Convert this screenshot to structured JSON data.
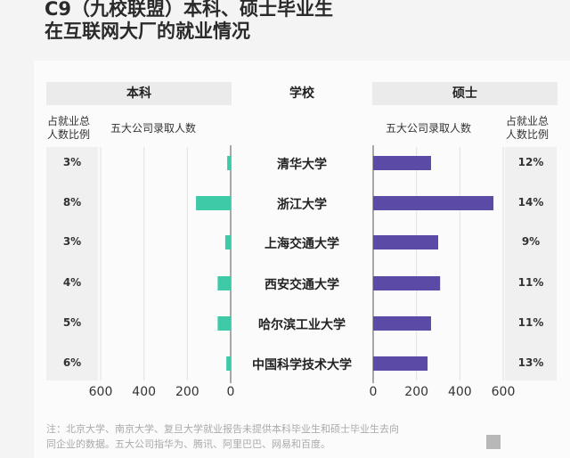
{
  "title_line1": "C9（九校联盟）本科、硕士毕业生",
  "title_line2": "在互联网大厂的就业情况",
  "chart_data": {
    "type": "bar",
    "layout": "back-to-back horizontal bars",
    "headers": {
      "left": "本科",
      "center": "学校",
      "right": "硕士"
    },
    "subheaders": {
      "left_pct": "占就业总人数比例",
      "left_count": "五大公司录取人数",
      "right_count": "五大公司录取人数",
      "right_pct": "占就业总人数比例"
    },
    "categories": [
      "清华大学",
      "浙江大学",
      "上海交通大学",
      "西安交通大学",
      "哈尔滨工业大学",
      "中国科学技术大学"
    ],
    "series": [
      {
        "name": "本科",
        "values": [
          16,
          160,
          25,
          60,
          60,
          20
        ],
        "share_labels": [
          "3%",
          "8%",
          "3%",
          "4%",
          "5%",
          "6%"
        ],
        "color": "#3ec9a7"
      },
      {
        "name": "硕士",
        "values": [
          267,
          555,
          300,
          309,
          267,
          251
        ],
        "share_labels": [
          "12%",
          "14%",
          "9%",
          "11%",
          "11%",
          "13%"
        ],
        "color": "#5b4aa6"
      }
    ],
    "xlim": [
      0,
      600
    ],
    "xticks": [
      "0",
      "200",
      "400",
      "600"
    ],
    "grid": true
  },
  "footnote_line1": "注：北京大学、南京大学、复旦大学就业报告未提供本科毕业生和硕士毕业生去向",
  "footnote_line2": "同企业的数据。五大公司指华为、腾讯、阿里巴巴、网易和百度。"
}
